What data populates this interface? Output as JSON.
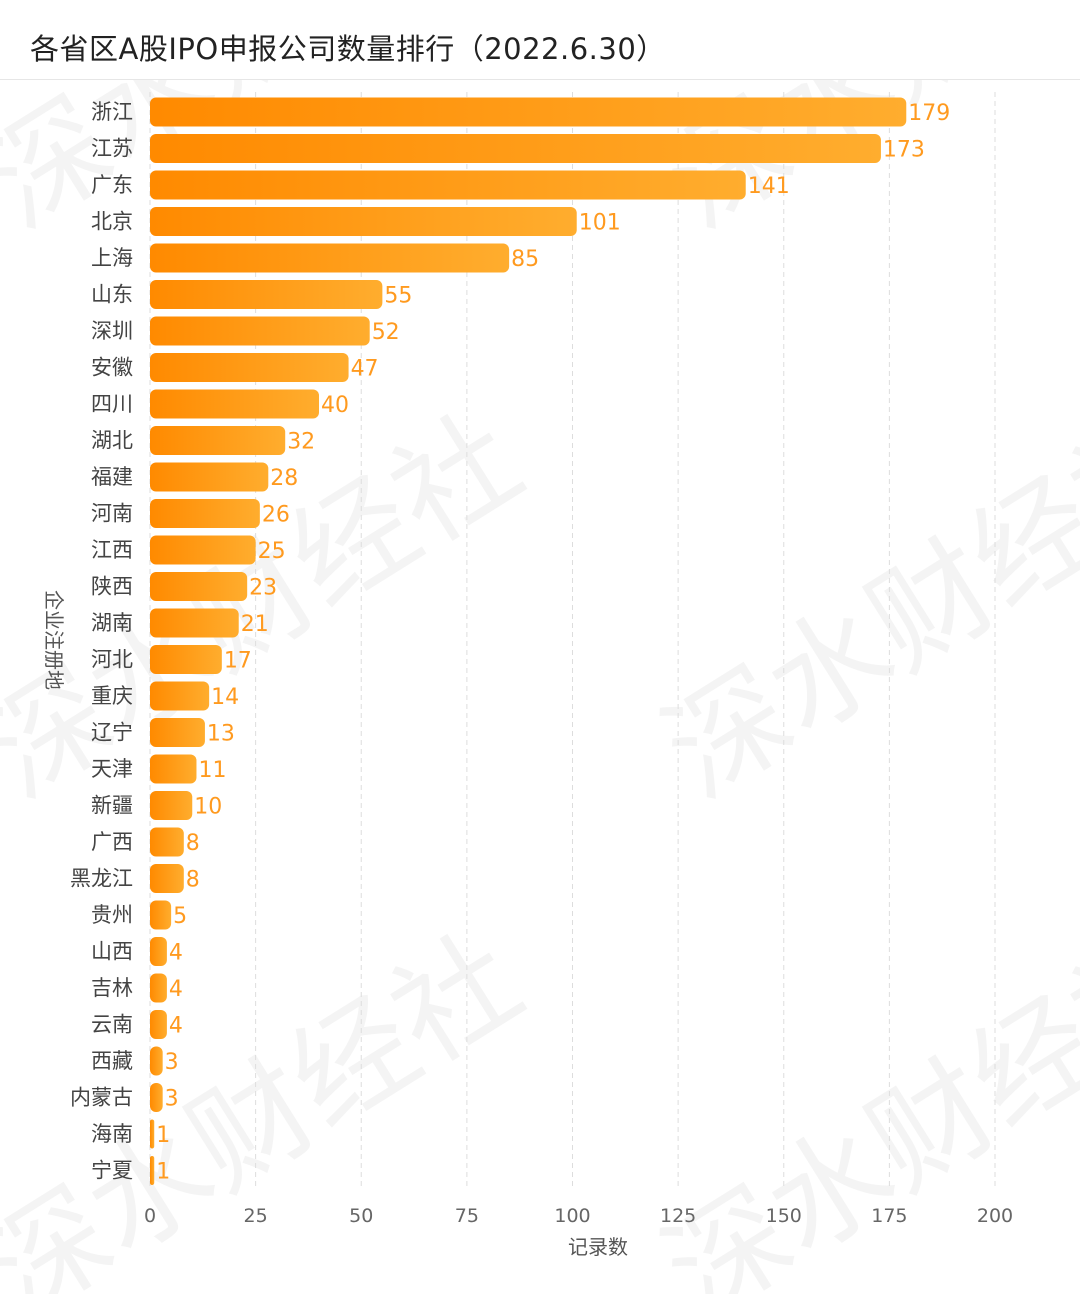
{
  "header": {
    "title": "各省区A股IPO申报公司数量排行（2022.6.30）"
  },
  "watermark": "深水财经社",
  "colors": {
    "bar_start": "#ff8a00",
    "bar_end": "#ffad2e",
    "value_label": "#ff9a1f",
    "grid": "#dddddd"
  },
  "chart_data": {
    "type": "bar",
    "orientation": "horizontal",
    "title": "各省区A股IPO申报公司数量排行（2022.6.30）",
    "xlabel": "记录数",
    "ylabel": "企业注册地",
    "xlim": [
      0,
      200
    ],
    "xticks": [
      0,
      25,
      50,
      75,
      100,
      125,
      150,
      175,
      200
    ],
    "grid": true,
    "legend": "none",
    "categories": [
      "浙江",
      "江苏",
      "广东",
      "北京",
      "上海",
      "山东",
      "深圳",
      "安徽",
      "四川",
      "湖北",
      "福建",
      "河南",
      "江西",
      "陕西",
      "湖南",
      "河北",
      "重庆",
      "辽宁",
      "天津",
      "新疆",
      "广西",
      "黑龙江",
      "贵州",
      "山西",
      "吉林",
      "云南",
      "西藏",
      "内蒙古",
      "海南",
      "宁夏"
    ],
    "values": [
      179,
      173,
      141,
      101,
      85,
      55,
      52,
      47,
      40,
      32,
      28,
      26,
      25,
      23,
      21,
      17,
      14,
      13,
      11,
      10,
      8,
      8,
      5,
      4,
      4,
      4,
      3,
      3,
      1,
      1
    ]
  }
}
